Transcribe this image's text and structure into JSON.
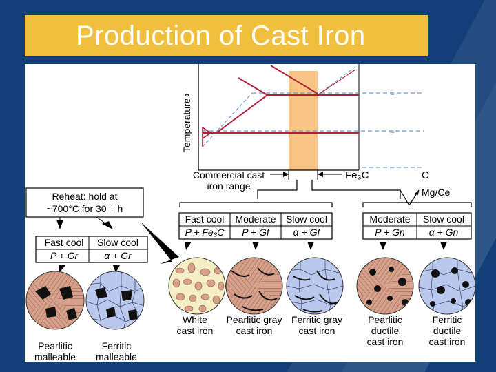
{
  "slide": {
    "title": "Production of Cast Iron",
    "colors": {
      "background": "#123f78",
      "title_bar": "#f1bf3e",
      "title_text": "#ffffff",
      "pearlite_fill": "#d7a08a",
      "ferrite_fill": "#b9c8ec",
      "white_iron_fill": "#f6efc6",
      "phase_line": "#b0203a",
      "dashed_line": "#6a9bd0",
      "range_band": "#f9c587"
    }
  },
  "diagram": {
    "y_axis_label": "Temperature",
    "arrow_glyph": "⟶",
    "range_label_line1": "Commercial cast",
    "range_label_line2": "iron range",
    "fe3c_label": "Fe₃C",
    "c_label": "C",
    "mgce_label": "Mg/Ce",
    "break_marks": [
      "≈",
      "≈",
      "≈"
    ],
    "reheat_line1": "Reheat: hold at",
    "reheat_line2": "~700°C for 30 + h"
  },
  "tables": {
    "malleable": {
      "headers": [
        "Fast cool",
        "Slow cool"
      ],
      "phases": [
        "P + Gr",
        "α + Gr"
      ]
    },
    "gray_white": {
      "headers": [
        "Fast cool",
        "Moderate",
        "Slow cool"
      ],
      "phases": [
        "P + Fe₃C",
        "P + Gf",
        "α + Gf"
      ]
    },
    "ductile": {
      "headers": [
        "Moderate",
        "Slow cool"
      ],
      "phases": [
        "P + Gn",
        "α + Gn"
      ]
    }
  },
  "microstructures": {
    "pearlitic_malleable": [
      "Pearlitic",
      "malleable"
    ],
    "ferritic_malleable": [
      "Ferritic",
      "malleable"
    ],
    "white": [
      "White",
      "cast iron"
    ],
    "pearlitic_gray": [
      "Pearlitic gray",
      "cast iron"
    ],
    "ferritic_gray": [
      "Ferritic gray",
      "cast iron"
    ],
    "pearlitic_ductile": [
      "Pearlitic",
      "ductile",
      "cast iron"
    ],
    "ferritic_ductile": [
      "Ferritic",
      "ductile",
      "cast iron"
    ]
  }
}
